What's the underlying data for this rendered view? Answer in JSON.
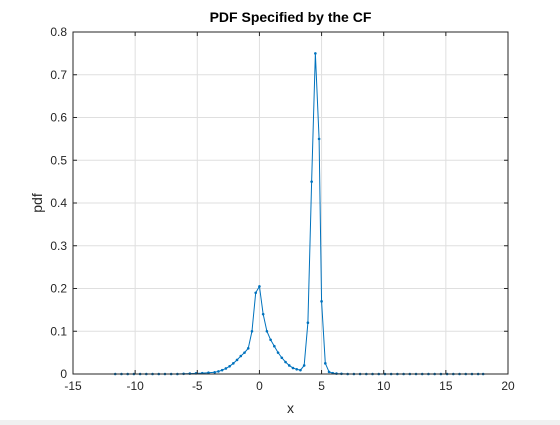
{
  "chart_data": {
    "type": "line",
    "title": "PDF Specified by the CF",
    "xlabel": "x",
    "ylabel": "pdf",
    "xlim": [
      -15,
      20
    ],
    "ylim": [
      0,
      0.8
    ],
    "xticks": [
      -15,
      -10,
      -5,
      0,
      5,
      10,
      15,
      20
    ],
    "xtick_labels": [
      "-15",
      "-10",
      "-5",
      "0",
      "5",
      "10",
      "15",
      "20"
    ],
    "yticks": [
      0,
      0.1,
      0.2,
      0.3,
      0.4,
      0.5,
      0.6,
      0.7,
      0.8
    ],
    "ytick_labels": [
      "0",
      "0.1",
      "0.2",
      "0.3",
      "0.4",
      "0.5",
      "0.6",
      "0.7",
      "0.8"
    ],
    "grid": true,
    "series": [
      {
        "color": "#0072bd",
        "marker": "dot",
        "x": [
          -11.6,
          -11.1,
          -10.6,
          -10.1,
          -9.6,
          -9.1,
          -8.6,
          -8.1,
          -7.6,
          -7.1,
          -6.6,
          -6.1,
          -5.6,
          -5.1,
          -4.6,
          -4.1,
          -3.6,
          -3.3,
          -3.0,
          -2.7,
          -2.4,
          -2.1,
          -1.8,
          -1.5,
          -1.2,
          -0.9,
          -0.6,
          -0.3,
          0.0,
          0.3,
          0.6,
          0.9,
          1.2,
          1.5,
          1.8,
          2.1,
          2.4,
          2.7,
          3.0,
          3.3,
          3.6,
          3.9,
          4.2,
          4.5,
          4.8,
          5.0,
          5.3,
          5.6,
          5.9,
          6.2,
          6.6,
          7.1,
          7.6,
          8.1,
          8.6,
          9.1,
          9.6,
          10.1,
          10.6,
          11.1,
          11.6,
          12.1,
          12.6,
          13.1,
          13.6,
          14.1,
          14.6,
          15.1,
          15.6,
          16.1,
          16.6,
          17.1,
          17.6,
          18.0
        ],
        "y": [
          0.0,
          0.0,
          0.0,
          0.0,
          0.0,
          0.0,
          0.0,
          0.0,
          0.0,
          0.0,
          0.0,
          0.0005,
          0.001,
          0.0015,
          0.002,
          0.003,
          0.004,
          0.006,
          0.009,
          0.013,
          0.018,
          0.025,
          0.033,
          0.042,
          0.05,
          0.06,
          0.1,
          0.19,
          0.205,
          0.14,
          0.1,
          0.08,
          0.065,
          0.05,
          0.038,
          0.028,
          0.02,
          0.014,
          0.011,
          0.009,
          0.02,
          0.12,
          0.45,
          0.75,
          0.55,
          0.17,
          0.025,
          0.005,
          0.002,
          0.001,
          0.0005,
          0.0,
          0.0,
          0.0,
          0.0,
          0.0,
          0.0,
          0.0,
          0.0,
          0.0,
          0.0,
          0.0,
          0.0,
          0.0,
          0.0,
          0.0,
          0.0,
          0.0,
          0.0,
          0.0,
          0.0,
          0.0,
          0.0,
          0.0
        ]
      }
    ]
  }
}
